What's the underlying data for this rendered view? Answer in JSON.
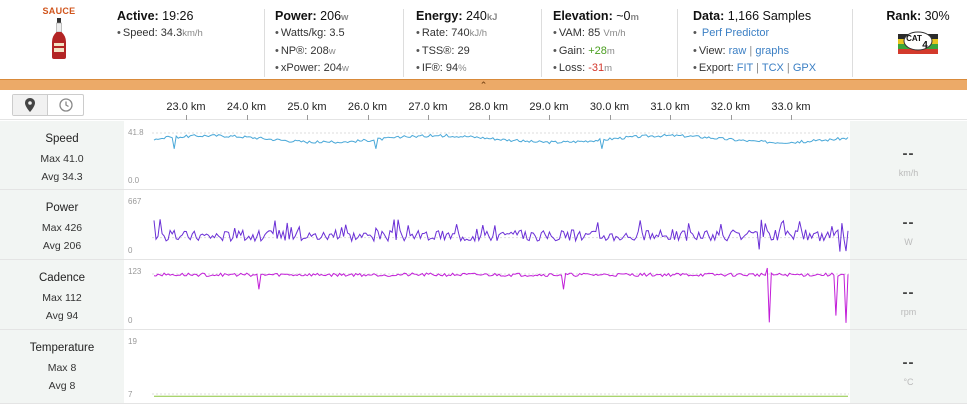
{
  "logo": {
    "text": "SAUCE"
  },
  "header": {
    "active": {
      "label": "Active:",
      "value": "19:26",
      "speed_label": "Speed:",
      "speed_value": "34.3",
      "speed_unit": "km/h"
    },
    "power": {
      "label": "Power:",
      "value": "206",
      "unit": "w",
      "rows": [
        {
          "label": "Watts/kg:",
          "value": "3.5",
          "unit": ""
        },
        {
          "label": "NP®:",
          "value": "208",
          "unit": "w"
        },
        {
          "label": "xPower:",
          "value": "204",
          "unit": "w"
        }
      ]
    },
    "energy": {
      "label": "Energy:",
      "value": "240",
      "unit": "kJ",
      "rows": [
        {
          "label": "Rate:",
          "value": "740",
          "unit": "kJ/h"
        },
        {
          "label": "TSS®:",
          "value": "29",
          "unit": ""
        },
        {
          "label": "IF®:",
          "value": "94",
          "unit": "%"
        }
      ]
    },
    "elevation": {
      "label": "Elevation:",
      "value": "~0",
      "unit": "m",
      "vam_label": "VAM:",
      "vam_value": "85",
      "vam_unit": "Vm/h",
      "gain_label": "Gain:",
      "gain_value": "+28",
      "gain_unit": "m",
      "loss_label": "Loss:",
      "loss_value": "-31",
      "loss_unit": "m"
    },
    "data": {
      "label": "Data:",
      "value": "1,166 Samples",
      "perf_link": "Perf Predictor",
      "view_label": "View:",
      "view_raw": "raw",
      "view_graphs": "graphs",
      "export_label": "Export:",
      "export_fit": "FIT",
      "export_tcx": "TCX",
      "export_gpx": "GPX"
    },
    "rank": {
      "label": "Rank:",
      "value": "30%",
      "badge_text": "CAT",
      "badge_number": "4"
    }
  },
  "collapse_glyph": "⌃",
  "toolbar": {
    "x_ticks": [
      "23.0 km",
      "24.0 km",
      "25.0 km",
      "26.0 km",
      "27.0 km",
      "28.0 km",
      "29.0 km",
      "30.0 km",
      "31.0 km",
      "32.0 km",
      "33.0 km"
    ]
  },
  "charts": [
    {
      "name": "Speed",
      "max": "Max 41.0",
      "avg": "Avg 34.3",
      "y_max": "41.8",
      "y_min": "0.0",
      "current": "--",
      "unit": "km/h",
      "color": "#4aa8d8"
    },
    {
      "name": "Power",
      "max": "Max 426",
      "avg": "Avg 206",
      "y_max": "667",
      "y_min": "0",
      "current": "--",
      "unit": "W",
      "color": "#6a2fd6"
    },
    {
      "name": "Cadence",
      "max": "Max 112",
      "avg": "Avg 94",
      "y_max": "123",
      "y_min": "0",
      "current": "--",
      "unit": "rpm",
      "color": "#c21ed8"
    },
    {
      "name": "Temperature",
      "max": "Max 8",
      "avg": "Avg 8",
      "y_max": "19",
      "y_min": "7",
      "current": "--",
      "unit": "°C",
      "color": "#8cc63f"
    }
  ]
}
